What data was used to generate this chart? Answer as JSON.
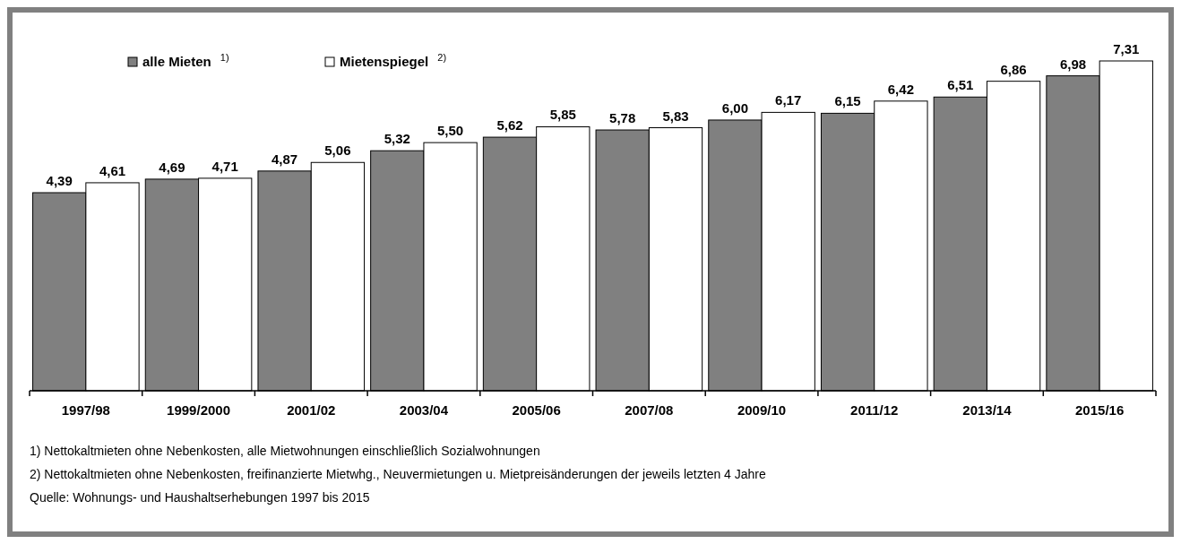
{
  "chart_data": {
    "type": "bar",
    "categories": [
      "1997/98",
      "1999/2000",
      "2001/02",
      "2003/04",
      "2005/06",
      "2007/08",
      "2009/10",
      "2011/12",
      "2013/14",
      "2015/16"
    ],
    "series": [
      {
        "name": "alle Mieten $^{1)}$",
        "color": "#808080",
        "values": [
          4.39,
          4.69,
          4.87,
          5.32,
          5.62,
          5.78,
          6.0,
          6.15,
          6.51,
          6.98
        ],
        "value_labels": [
          "4,39",
          "4,69",
          "4,87",
          "5,32",
          "5,62",
          "5,78",
          "6,00",
          "6,15",
          "6,51",
          "6,98"
        ]
      },
      {
        "name": "Mietenspiegel $^{2)}$",
        "color": "#ffffff",
        "values": [
          4.61,
          4.71,
          5.06,
          5.5,
          5.85,
          5.83,
          6.17,
          6.42,
          6.86,
          7.31
        ],
        "value_labels": [
          "4,61",
          "4,71",
          "5,06",
          "5,50",
          "5,85",
          "5,83",
          "6,17",
          "6,42",
          "6,86",
          "7,31"
        ]
      }
    ],
    "relative": false,
    "legend": "top left",
    "grid": false,
    "annotations": [
      "1) Nettokaltmieten ohne Nebenkosten, alle Mietwohnungen einschließlich Sozialwohnungen",
      "2) Nettokaltmieten ohne Nebenkosten, freifinanzierte Mietwhg., Neuvermietungen u. Mietpreisänderungen der jeweils letzten 4 Jahre",
      "Quelle: Wohnungs- und Haushaltserhebungen 1997 bis 2015"
    ]
  }
}
